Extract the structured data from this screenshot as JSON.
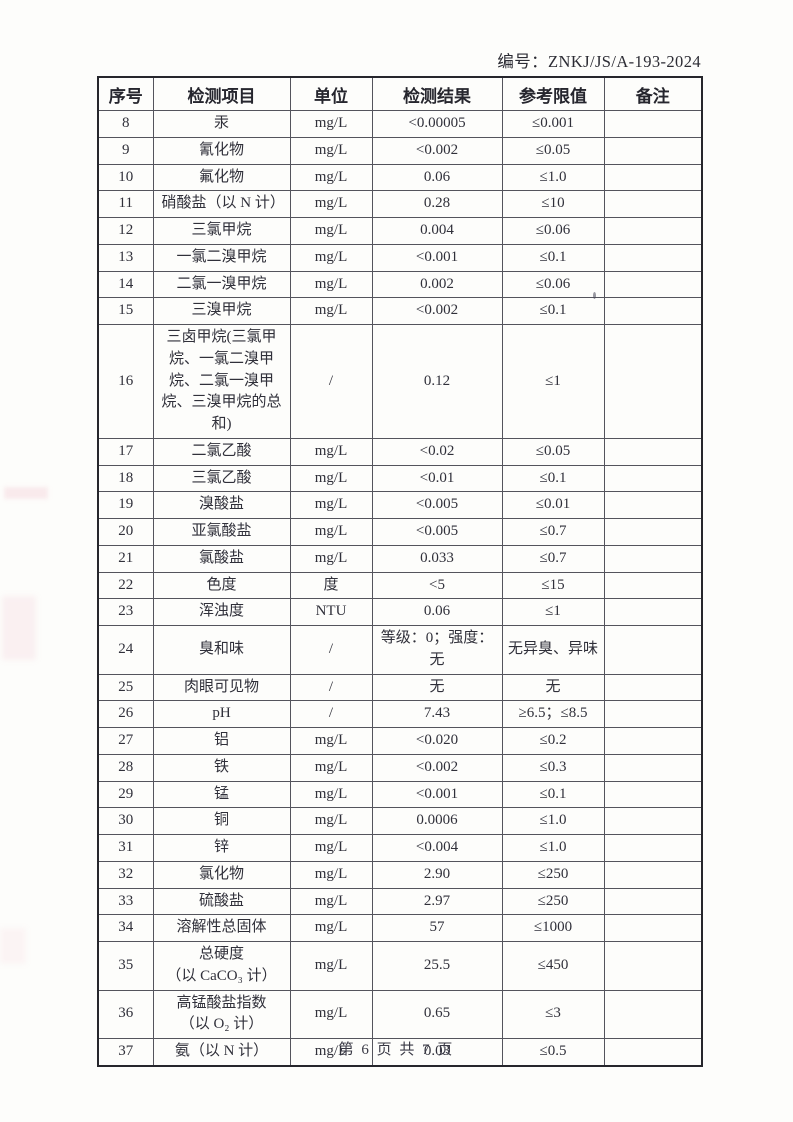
{
  "page": {
    "ref_label": "编号：ZNKJ/JS/A-193-2024",
    "footer": "第 6 页 共 7 页"
  },
  "table": {
    "headers": [
      "序号",
      "检测项目",
      "单位",
      "检测结果",
      "参考限值",
      "备注"
    ],
    "column_keys": [
      "no",
      "item",
      "unit",
      "result",
      "limit",
      "remark"
    ],
    "rows": [
      {
        "no": "8",
        "item": "汞",
        "unit": "mg/L",
        "result": "<0.00005",
        "limit": "≤0.001",
        "remark": ""
      },
      {
        "no": "9",
        "item": "氰化物",
        "unit": "mg/L",
        "result": "<0.002",
        "limit": "≤0.05",
        "remark": ""
      },
      {
        "no": "10",
        "item": "氟化物",
        "unit": "mg/L",
        "result": "0.06",
        "limit": "≤1.0",
        "remark": ""
      },
      {
        "no": "11",
        "item": "硝酸盐（以 N 计）",
        "unit": "mg/L",
        "result": "0.28",
        "limit": "≤10",
        "remark": ""
      },
      {
        "no": "12",
        "item": "三氯甲烷",
        "unit": "mg/L",
        "result": "0.004",
        "limit": "≤0.06",
        "remark": ""
      },
      {
        "no": "13",
        "item": "一氯二溴甲烷",
        "unit": "mg/L",
        "result": "<0.001",
        "limit": "≤0.1",
        "remark": ""
      },
      {
        "no": "14",
        "item": "二氯一溴甲烷",
        "unit": "mg/L",
        "result": "0.002",
        "limit": "≤0.06",
        "remark": ""
      },
      {
        "no": "15",
        "item": "三溴甲烷",
        "unit": "mg/L",
        "result": "<0.002",
        "limit": "≤0.1",
        "remark": ""
      },
      {
        "no": "16",
        "item": "三卤甲烷(三氯甲烷、一氯二溴甲烷、二氯一溴甲烷、三溴甲烷的总和)",
        "unit": "/",
        "result": "0.12",
        "limit": "≤1",
        "remark": ""
      },
      {
        "no": "17",
        "item": "二氯乙酸",
        "unit": "mg/L",
        "result": "<0.02",
        "limit": "≤0.05",
        "remark": ""
      },
      {
        "no": "18",
        "item": "三氯乙酸",
        "unit": "mg/L",
        "result": "<0.01",
        "limit": "≤0.1",
        "remark": ""
      },
      {
        "no": "19",
        "item": "溴酸盐",
        "unit": "mg/L",
        "result": "<0.005",
        "limit": "≤0.01",
        "remark": ""
      },
      {
        "no": "20",
        "item": "亚氯酸盐",
        "unit": "mg/L",
        "result": "<0.005",
        "limit": "≤0.7",
        "remark": ""
      },
      {
        "no": "21",
        "item": "氯酸盐",
        "unit": "mg/L",
        "result": "0.033",
        "limit": "≤0.7",
        "remark": ""
      },
      {
        "no": "22",
        "item": "色度",
        "unit": "度",
        "result": "<5",
        "limit": "≤15",
        "remark": ""
      },
      {
        "no": "23",
        "item": "浑浊度",
        "unit": "NTU",
        "result": "0.06",
        "limit": "≤1",
        "remark": ""
      },
      {
        "no": "24",
        "item": "臭和味",
        "unit": "/",
        "result": "等级：0；强度：无",
        "limit": "无异臭、异味",
        "remark": ""
      },
      {
        "no": "25",
        "item": "肉眼可见物",
        "unit": "/",
        "result": "无",
        "limit": "无",
        "remark": ""
      },
      {
        "no": "26",
        "item": "pH",
        "unit": "/",
        "result": "7.43",
        "limit": "≥6.5；≤8.5",
        "remark": ""
      },
      {
        "no": "27",
        "item": "铝",
        "unit": "mg/L",
        "result": "<0.020",
        "limit": "≤0.2",
        "remark": ""
      },
      {
        "no": "28",
        "item": "铁",
        "unit": "mg/L",
        "result": "<0.002",
        "limit": "≤0.3",
        "remark": ""
      },
      {
        "no": "29",
        "item": "锰",
        "unit": "mg/L",
        "result": "<0.001",
        "limit": "≤0.1",
        "remark": ""
      },
      {
        "no": "30",
        "item": "铜",
        "unit": "mg/L",
        "result": "0.0006",
        "limit": "≤1.0",
        "remark": ""
      },
      {
        "no": "31",
        "item": "锌",
        "unit": "mg/L",
        "result": "<0.004",
        "limit": "≤1.0",
        "remark": ""
      },
      {
        "no": "32",
        "item": "氯化物",
        "unit": "mg/L",
        "result": "2.90",
        "limit": "≤250",
        "remark": ""
      },
      {
        "no": "33",
        "item": "硫酸盐",
        "unit": "mg/L",
        "result": "2.97",
        "limit": "≤250",
        "remark": ""
      },
      {
        "no": "34",
        "item": "溶解性总固体",
        "unit": "mg/L",
        "result": "57",
        "limit": "≤1000",
        "remark": ""
      },
      {
        "no": "35",
        "item": "总硬度\n（以 CaCO₃ 计）",
        "unit": "mg/L",
        "result": "25.5",
        "limit": "≤450",
        "remark": ""
      },
      {
        "no": "36",
        "item": "高锰酸盐指数\n（以 O₂ 计）",
        "unit": "mg/L",
        "result": "0.65",
        "limit": "≤3",
        "remark": ""
      },
      {
        "no": "37",
        "item": "氨（以 N 计）",
        "unit": "mg/L",
        "result": "0.03",
        "limit": "≤0.5",
        "remark": ""
      }
    ]
  }
}
